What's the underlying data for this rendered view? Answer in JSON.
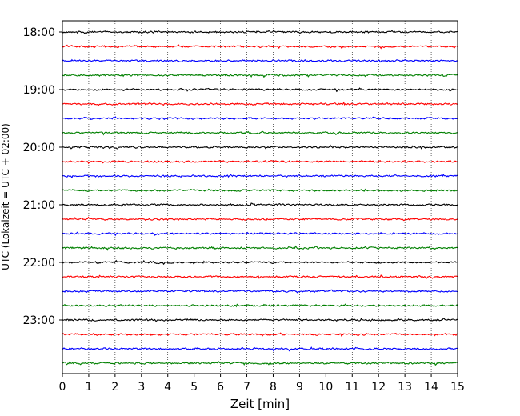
{
  "chart_data": {
    "type": "line",
    "title": "",
    "xlabel": "Zeit  [min]",
    "ylabel": "UTC (Lokalzeit = UTC + 02:00)",
    "xlim": [
      0,
      15
    ],
    "x_ticks": [
      0,
      1,
      2,
      3,
      4,
      5,
      6,
      7,
      8,
      9,
      10,
      11,
      12,
      13,
      14,
      15
    ],
    "y_ticks": [
      "18:00",
      "19:00",
      "20:00",
      "21:00",
      "22:00",
      "23:00"
    ],
    "grid": "vertical dotted at each minute",
    "legend": "none",
    "trace_interval_min": 15,
    "trace_colors": [
      "#000000",
      "#ff0000",
      "#0000ff",
      "#008000"
    ],
    "series": [
      {
        "start": "18:00",
        "color": "#000000"
      },
      {
        "start": "18:15",
        "color": "#ff0000"
      },
      {
        "start": "18:30",
        "color": "#0000ff"
      },
      {
        "start": "18:45",
        "color": "#008000"
      },
      {
        "start": "19:00",
        "color": "#000000"
      },
      {
        "start": "19:15",
        "color": "#ff0000"
      },
      {
        "start": "19:30",
        "color": "#0000ff"
      },
      {
        "start": "19:45",
        "color": "#008000"
      },
      {
        "start": "20:00",
        "color": "#000000"
      },
      {
        "start": "20:15",
        "color": "#ff0000"
      },
      {
        "start": "20:30",
        "color": "#0000ff"
      },
      {
        "start": "20:45",
        "color": "#008000"
      },
      {
        "start": "21:00",
        "color": "#000000"
      },
      {
        "start": "21:15",
        "color": "#ff0000"
      },
      {
        "start": "21:30",
        "color": "#0000ff"
      },
      {
        "start": "21:45",
        "color": "#008000"
      },
      {
        "start": "22:00",
        "color": "#000000"
      },
      {
        "start": "22:15",
        "color": "#ff0000"
      },
      {
        "start": "22:30",
        "color": "#0000ff"
      },
      {
        "start": "22:45",
        "color": "#008000"
      },
      {
        "start": "23:00",
        "color": "#000000"
      },
      {
        "start": "23:15",
        "color": "#ff0000"
      },
      {
        "start": "23:30",
        "color": "#0000ff"
      },
      {
        "start": "23:45",
        "color": "#008000"
      }
    ]
  }
}
